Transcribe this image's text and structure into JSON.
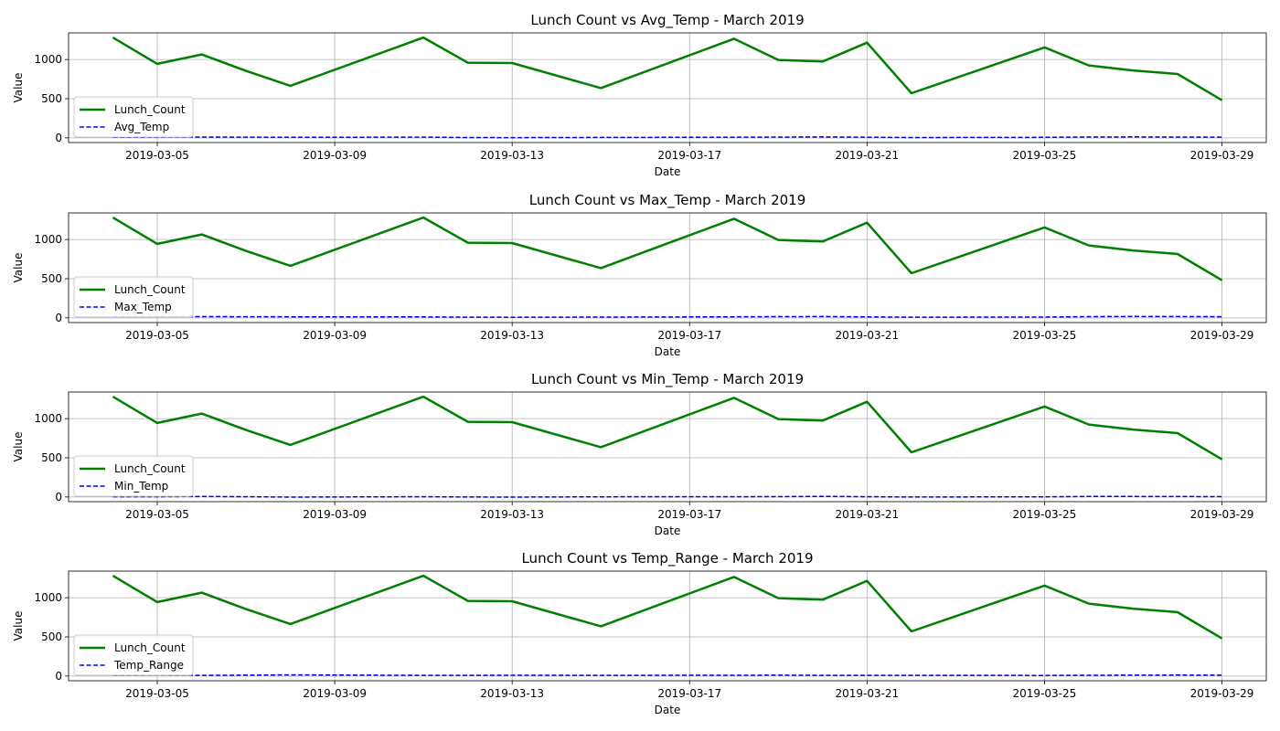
{
  "chart_data": {
    "type": "line",
    "xlabel": "Date",
    "ylabel": "Value",
    "x": [
      "2019-03-04",
      "2019-03-05",
      "2019-03-06",
      "2019-03-07",
      "2019-03-08",
      "2019-03-11",
      "2019-03-12",
      "2019-03-13",
      "2019-03-15",
      "2019-03-18",
      "2019-03-19",
      "2019-03-20",
      "2019-03-21",
      "2019-03-22",
      "2019-03-25",
      "2019-03-26",
      "2019-03-27",
      "2019-03-28",
      "2019-03-29"
    ],
    "x_ticks": [
      "2019-03-05",
      "2019-03-09",
      "2019-03-13",
      "2019-03-17",
      "2019-03-21",
      "2019-03-25",
      "2019-03-29"
    ],
    "xlim": [
      "2019-03-03",
      "2019-03-30"
    ],
    "y_ticks": [
      0,
      500,
      1000
    ],
    "ylim": [
      -60,
      1340
    ],
    "grid": true,
    "legend_loc": "lower left",
    "colors": {
      "lunch": "#008000",
      "temp": "#0000ff"
    },
    "lunch_series": {
      "name": "Lunch_Count",
      "values": [
        1280,
        945,
        1065,
        855,
        665,
        1280,
        960,
        955,
        635,
        1265,
        995,
        975,
        1215,
        570,
        1155,
        925,
        860,
        815,
        480
      ]
    },
    "panels": [
      {
        "title": "Lunch Count vs Avg_Temp - March 2019",
        "series_name": "Avg_Temp",
        "values": [
          7.5,
          8.2,
          10.1,
          8.9,
          6.4,
          8.7,
          3.9,
          2.8,
          5.9,
          7.2,
          9.6,
          12.1,
          8.0,
          4.1,
          6.6,
          10.9,
          11.8,
          10.2,
          9.0
        ]
      },
      {
        "title": "Lunch Count vs Max_Temp - March 2019",
        "series_name": "Max_Temp",
        "values": [
          13.0,
          14.5,
          15.3,
          14.1,
          13.2,
          12.0,
          8.7,
          8.0,
          10.5,
          13.4,
          16.0,
          17.2,
          12.3,
          8.5,
          10.1,
          16.4,
          18.0,
          17.1,
          15.2
        ]
      },
      {
        "title": "Lunch Count vs Min_Temp - March 2019",
        "series_name": "Min_Temp",
        "values": [
          2.6,
          3.2,
          6.0,
          2.8,
          -1.2,
          3.5,
          -0.5,
          -2.0,
          1.4,
          2.9,
          4.6,
          7.8,
          3.5,
          -0.6,
          2.1,
          6.1,
          7.0,
          5.2,
          3.6
        ]
      },
      {
        "title": "Lunch Count vs Temp_Range - March 2019",
        "series_name": "Temp_Range",
        "values": [
          10.4,
          11.3,
          9.3,
          11.3,
          14.4,
          8.5,
          9.2,
          10.0,
          9.1,
          10.5,
          11.4,
          9.4,
          8.8,
          9.1,
          8.0,
          10.3,
          11.0,
          11.9,
          11.6
        ]
      }
    ]
  }
}
